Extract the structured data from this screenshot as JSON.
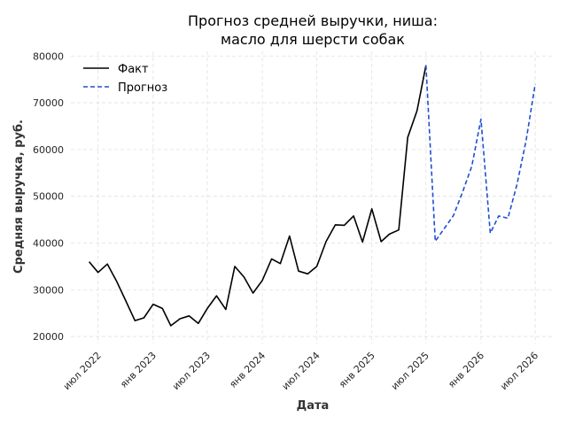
{
  "chart_data": {
    "type": "line",
    "title_line1": "Прогноз средней выручки, ниша:",
    "title_line2": "масло для шерсти собак",
    "xlabel": "Дата",
    "ylabel": "Средняя выручка, руб.",
    "xlim": [
      "2022-04-01",
      "2026-09-01"
    ],
    "ylim": [
      18500,
      81000
    ],
    "y_ticks": [
      20000,
      30000,
      40000,
      50000,
      60000,
      70000,
      80000
    ],
    "y_tick_labels": [
      "20000",
      "30000",
      "40000",
      "50000",
      "60000",
      "70000",
      "80000"
    ],
    "x_ticks": [
      "2022-07-01",
      "2023-01-01",
      "2023-07-01",
      "2024-01-01",
      "2024-07-01",
      "2025-01-01",
      "2025-07-01",
      "2026-01-01",
      "2026-07-01"
    ],
    "x_tick_labels": [
      "июл 2022",
      "янв 2023",
      "июл 2023",
      "янв 2024",
      "июл 2024",
      "янв 2025",
      "июл 2025",
      "янв 2026",
      "июл 2026"
    ],
    "grid": true,
    "legend_position": "top-left",
    "series": [
      {
        "name": "Факт",
        "color": "#000000",
        "style": "solid",
        "points": [
          [
            "2022-06-01",
            36000
          ],
          [
            "2022-07-01",
            33700
          ],
          [
            "2022-08-01",
            35500
          ],
          [
            "2022-09-01",
            31800
          ],
          [
            "2022-10-01",
            27700
          ],
          [
            "2022-11-01",
            23400
          ],
          [
            "2022-12-01",
            24000
          ],
          [
            "2023-01-01",
            26900
          ],
          [
            "2023-02-01",
            26000
          ],
          [
            "2023-03-01",
            22300
          ],
          [
            "2023-04-01",
            23800
          ],
          [
            "2023-05-01",
            24400
          ],
          [
            "2023-06-01",
            22800
          ],
          [
            "2023-07-01",
            26000
          ],
          [
            "2023-08-01",
            28700
          ],
          [
            "2023-09-01",
            25800
          ],
          [
            "2023-10-01",
            35000
          ],
          [
            "2023-11-01",
            32700
          ],
          [
            "2023-12-01",
            29300
          ],
          [
            "2024-01-01",
            32000
          ],
          [
            "2024-02-01",
            36600
          ],
          [
            "2024-03-01",
            35600
          ],
          [
            "2024-04-01",
            41500
          ],
          [
            "2024-05-01",
            34000
          ],
          [
            "2024-06-01",
            33400
          ],
          [
            "2024-07-01",
            35000
          ],
          [
            "2024-08-01",
            40300
          ],
          [
            "2024-09-01",
            43900
          ],
          [
            "2024-10-01",
            43800
          ],
          [
            "2024-11-01",
            45800
          ],
          [
            "2024-12-01",
            40200
          ],
          [
            "2025-01-01",
            47300
          ],
          [
            "2025-02-01",
            40300
          ],
          [
            "2025-03-01",
            41900
          ],
          [
            "2025-04-01",
            42800
          ],
          [
            "2025-05-01",
            62600
          ],
          [
            "2025-06-01",
            68300
          ],
          [
            "2025-07-01",
            78000
          ]
        ]
      },
      {
        "name": "Прогноз",
        "color": "#1f4fd1",
        "style": "dashed",
        "points": [
          [
            "2025-07-01",
            78000
          ],
          [
            "2025-08-01",
            40400
          ],
          [
            "2025-09-01",
            43200
          ],
          [
            "2025-10-01",
            45900
          ],
          [
            "2025-11-01",
            51000
          ],
          [
            "2025-12-01",
            56400
          ],
          [
            "2026-01-01",
            66500
          ],
          [
            "2026-02-01",
            42100
          ],
          [
            "2026-03-01",
            45800
          ],
          [
            "2026-04-01",
            45300
          ],
          [
            "2026-05-01",
            52500
          ],
          [
            "2026-06-01",
            62000
          ],
          [
            "2026-07-01",
            74000
          ]
        ]
      }
    ]
  }
}
